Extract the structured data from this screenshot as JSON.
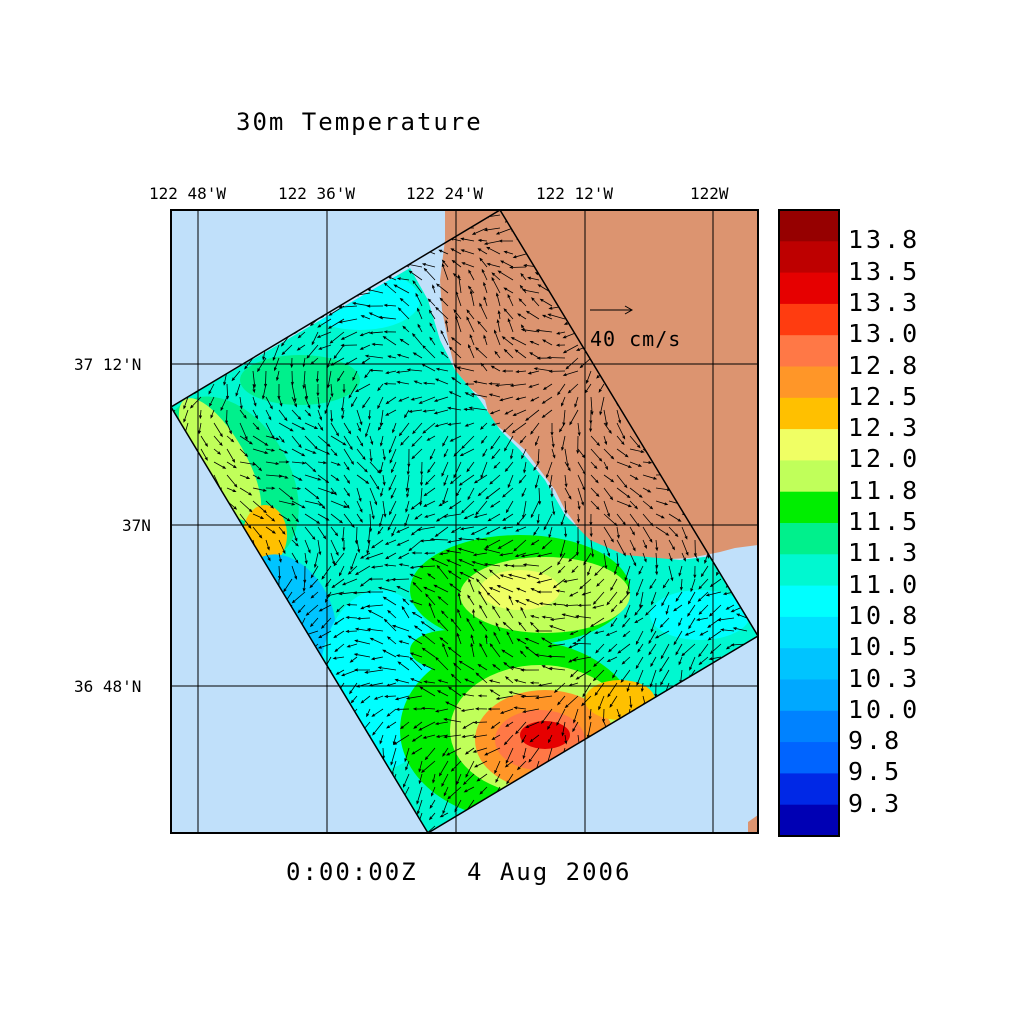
{
  "title": "30m Temperature",
  "timestamp": "0:00:00Z   4 Aug 2006",
  "longitude_labels": [
    "122 48'W",
    "122 36'W",
    "122 24'W",
    "122 12'W",
    "122W"
  ],
  "latitude_labels": [
    "37 12'N",
    "37N",
    "36 48'N"
  ],
  "vector_scale_label": "40 cm/s",
  "colors": {
    "ocean": "#c0e0fa",
    "land": "#dc9470"
  },
  "colorbar": {
    "labels": [
      "13.8",
      "13.5",
      "13.3",
      "13.0",
      "12.8",
      "12.5",
      "12.3",
      "12.0",
      "11.8",
      "11.5",
      "11.3",
      "11.0",
      "10.8",
      "10.5",
      "10.3",
      "10.0",
      "9.8",
      "9.5",
      "9.3"
    ],
    "colors": [
      "#960000",
      "#be0000",
      "#e60000",
      "#ff3c10",
      "#ff7846",
      "#ff9628",
      "#ffc000",
      "#f0ff64",
      "#c0ff5a",
      "#00ee00",
      "#00f08c",
      "#00f8d0",
      "#00ffff",
      "#00e0ff",
      "#00c4ff",
      "#00a8ff",
      "#0082ff",
      "#0064ff",
      "#0028e6",
      "#0000b4"
    ]
  }
}
